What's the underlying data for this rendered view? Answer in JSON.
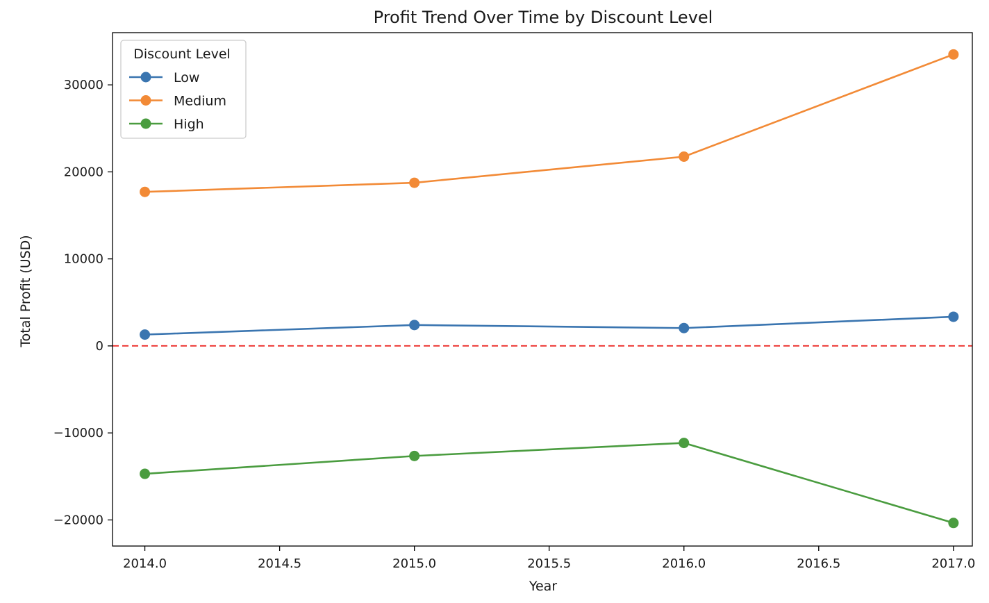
{
  "chart_data": {
    "type": "line",
    "title": "Profit Trend Over Time by Discount Level",
    "xlabel": "Year",
    "ylabel": "Total Profit (USD)",
    "x": [
      2014,
      2015,
      2016,
      2017
    ],
    "xlim": [
      2013.88,
      2017.07
    ],
    "ylim": [
      -23000,
      36000
    ],
    "x_ticks": [
      2014.0,
      2014.5,
      2015.0,
      2015.5,
      2016.0,
      2016.5,
      2017.0
    ],
    "x_tick_labels": [
      "2014.0",
      "2014.5",
      "2015.0",
      "2015.5",
      "2016.0",
      "2016.5",
      "2017.0"
    ],
    "y_ticks": [
      -20000,
      -10000,
      0,
      10000,
      20000,
      30000
    ],
    "y_tick_labels": [
      "−20000",
      "−10000",
      "0",
      "10000",
      "20000",
      "30000"
    ],
    "grid": false,
    "legend": {
      "title": "Discount Level",
      "placement": "top-left"
    },
    "reference_line": {
      "y": 0,
      "style": "dashed",
      "color": "#ee3a36"
    },
    "series": [
      {
        "name": "Low",
        "color": "#3a75b0",
        "values": [
          1300,
          2400,
          2050,
          3350
        ]
      },
      {
        "name": "Medium",
        "color": "#f28a36",
        "values": [
          17700,
          18750,
          21750,
          33500
        ]
      },
      {
        "name": "High",
        "color": "#4a9c3f",
        "values": [
          -14700,
          -12650,
          -11150,
          -20350
        ]
      }
    ]
  }
}
